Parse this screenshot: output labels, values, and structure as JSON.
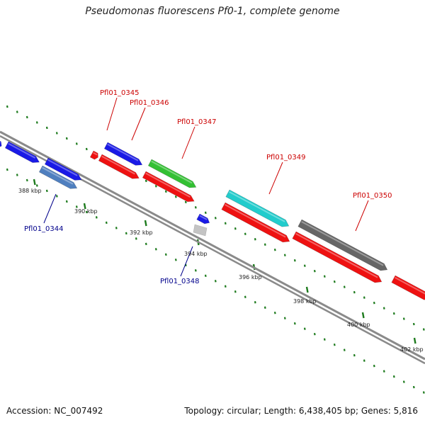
{
  "title": "Pseudomonas fluorescens Pf0-1, complete genome",
  "footer": {
    "accession": "Accession: NC_007492",
    "summary": "Topology: circular; Length: 6,438,405 bp; Genes: 5,816"
  },
  "colors": {
    "backbone": "#8a8a8a",
    "tick": "#1c7a1c",
    "forward_label": "#cc0000",
    "reverse_label": "#00008b",
    "blue": "#1a1ae6",
    "red": "#ee1111",
    "green": "#33c033",
    "cyan": "#22cccc",
    "darkgray": "#666666",
    "steelblue": "#4f7fbf",
    "lightgray": "#c4c4c4"
  },
  "tick_labels": [
    "388 kbp",
    "390 kbp",
    "392 kbp",
    "394 kbp",
    "396 kbp",
    "398 kbp",
    "400 kbp",
    "402 kbp"
  ],
  "gene_labels": [
    {
      "text": "Pfl01_0345",
      "color": "forward_label"
    },
    {
      "text": "Pfl01_0346",
      "color": "forward_label"
    },
    {
      "text": "Pfl01_0347",
      "color": "forward_label"
    },
    {
      "text": "Pfl01_0349",
      "color": "forward_label"
    },
    {
      "text": "Pfl01_0350",
      "color": "forward_label"
    },
    {
      "text": "Pfl01_0344",
      "color": "reverse_label"
    },
    {
      "text": "Pfl01_0348",
      "color": "reverse_label"
    }
  ]
}
